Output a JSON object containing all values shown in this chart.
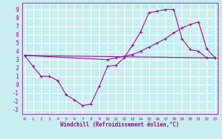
{
  "xlabel": "Windchill (Refroidissement éolien,°C)",
  "background_color": "#c8eef0",
  "grid_color": "#ffffff",
  "line_color": "#990099",
  "ylim": [
    -3.5,
    9.8
  ],
  "xlim": [
    -0.3,
    23.3
  ],
  "yticks": [
    -3,
    -2,
    -1,
    0,
    1,
    2,
    3,
    4,
    5,
    6,
    7,
    8,
    9
  ],
  "xticks": [
    0,
    1,
    2,
    3,
    4,
    5,
    6,
    7,
    8,
    9,
    10,
    11,
    12,
    13,
    14,
    15,
    16,
    17,
    18,
    19,
    20,
    21,
    22,
    23
  ],
  "series": [
    {
      "x": [
        0,
        1,
        2,
        3,
        4,
        5,
        6,
        7,
        8,
        9,
        10,
        11,
        12,
        13,
        14,
        15,
        16,
        17,
        18,
        19,
        20,
        21,
        22,
        23
      ],
      "y": [
        3.5,
        2.2,
        1.0,
        1.0,
        0.5,
        -1.2,
        -1.8,
        -2.5,
        -2.3,
        -0.2,
        2.2,
        2.3,
        3.2,
        4.7,
        6.3,
        8.6,
        8.8,
        9.0,
        9.0,
        5.5,
        4.2,
        4.0,
        3.2,
        3.2
      ],
      "marker": true
    },
    {
      "x": [
        0,
        10,
        11,
        12,
        13,
        14,
        15,
        16,
        17,
        18,
        19,
        20,
        21,
        22,
        23
      ],
      "y": [
        3.5,
        3.0,
        3.2,
        3.4,
        3.6,
        4.0,
        4.5,
        5.0,
        5.5,
        6.2,
        6.8,
        7.2,
        7.5,
        4.3,
        3.2
      ],
      "marker": true
    },
    {
      "x": [
        0,
        23
      ],
      "y": [
        3.5,
        3.2
      ],
      "marker": false
    }
  ]
}
